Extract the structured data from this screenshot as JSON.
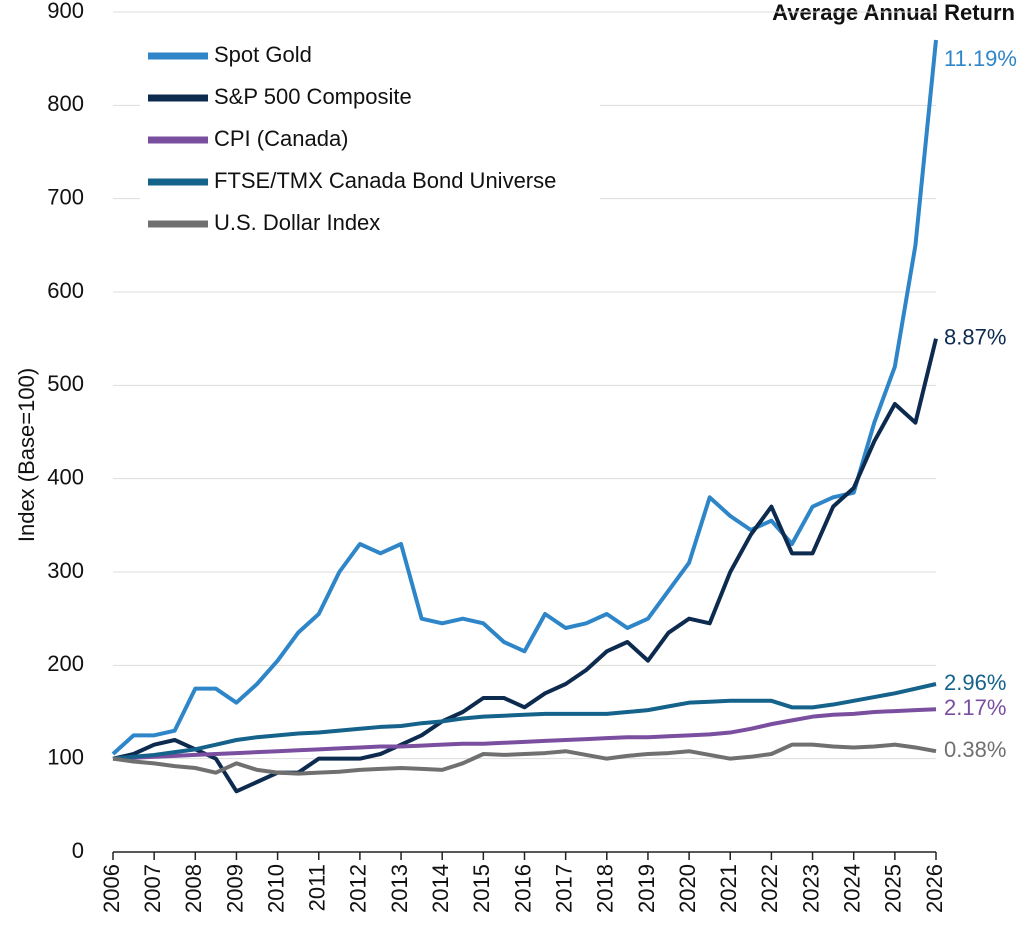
{
  "chart_data": {
    "type": "line",
    "ylabel": "Index (Base=100)",
    "annotation": "Average Annual Return",
    "x": [
      2006,
      2006.5,
      2007,
      2007.5,
      2008,
      2008.5,
      2009,
      2009.5,
      2010,
      2010.5,
      2011,
      2011.5,
      2012,
      2012.5,
      2013,
      2013.5,
      2014,
      2014.5,
      2015,
      2015.5,
      2016,
      2016.5,
      2017,
      2017.5,
      2018,
      2018.5,
      2019,
      2019.5,
      2020,
      2020.5,
      2021,
      2021.5,
      2022,
      2022.5,
      2023,
      2023.5,
      2024,
      2024.5,
      2025,
      2025.5,
      2026
    ],
    "series": [
      {
        "name": "Spot Gold",
        "color": "#2e86c8",
        "return_label": "11.19%",
        "values": [
          105,
          125,
          125,
          130,
          175,
          175,
          160,
          180,
          205,
          235,
          255,
          300,
          330,
          320,
          330,
          250,
          245,
          250,
          245,
          225,
          215,
          255,
          240,
          245,
          255,
          240,
          250,
          280,
          310,
          380,
          360,
          345,
          355,
          330,
          370,
          380,
          385,
          460,
          520,
          650,
          870
        ]
      },
      {
        "name": "S&P 500 Composite",
        "color": "#0d2a4f",
        "return_label": "8.87%",
        "values": [
          100,
          105,
          115,
          120,
          110,
          100,
          65,
          75,
          85,
          85,
          100,
          100,
          100,
          105,
          115,
          125,
          140,
          150,
          165,
          165,
          155,
          170,
          180,
          195,
          215,
          225,
          205,
          235,
          250,
          245,
          300,
          340,
          370,
          320,
          320,
          370,
          390,
          440,
          480,
          460,
          550
        ]
      },
      {
        "name": "CPI (Canada)",
        "color": "#7b4fa0",
        "return_label": "2.17%",
        "values": [
          100,
          101,
          102,
          103,
          104,
          105,
          106,
          107,
          108,
          109,
          110,
          111,
          112,
          113,
          113,
          114,
          115,
          116,
          116,
          117,
          118,
          119,
          120,
          121,
          122,
          123,
          123,
          124,
          125,
          126,
          128,
          132,
          137,
          141,
          145,
          147,
          148,
          150,
          151,
          152,
          153
        ]
      },
      {
        "name": "FTSE/TMX Canada Bond Universe",
        "color": "#15628a",
        "return_label": "2.96%",
        "values": [
          100,
          102,
          104,
          107,
          110,
          115,
          120,
          123,
          125,
          127,
          128,
          130,
          132,
          134,
          135,
          138,
          140,
          143,
          145,
          146,
          147,
          148,
          148,
          148,
          148,
          150,
          152,
          156,
          160,
          161,
          162,
          162,
          162,
          155,
          155,
          158,
          162,
          166,
          170,
          175,
          180
        ]
      },
      {
        "name": "U.S. Dollar Index",
        "color": "#707070",
        "return_label": "0.38%",
        "values": [
          100,
          97,
          95,
          92,
          90,
          85,
          95,
          88,
          85,
          84,
          85,
          86,
          88,
          89,
          90,
          89,
          88,
          95,
          105,
          104,
          105,
          106,
          108,
          104,
          100,
          103,
          105,
          106,
          108,
          104,
          100,
          102,
          105,
          115,
          115,
          113,
          112,
          113,
          115,
          112,
          108
        ]
      }
    ],
    "xlim": [
      2006,
      2026
    ],
    "ylim": [
      0,
      900
    ],
    "xticks": [
      2006,
      2007,
      2008,
      2009,
      2010,
      2011,
      2012,
      2013,
      2014,
      2015,
      2016,
      2017,
      2018,
      2019,
      2020,
      2021,
      2022,
      2023,
      2024,
      2025,
      2026
    ],
    "yticks": [
      0,
      100,
      200,
      300,
      400,
      500,
      600,
      700,
      800,
      900
    ],
    "grid": true,
    "legend": "upper left"
  }
}
